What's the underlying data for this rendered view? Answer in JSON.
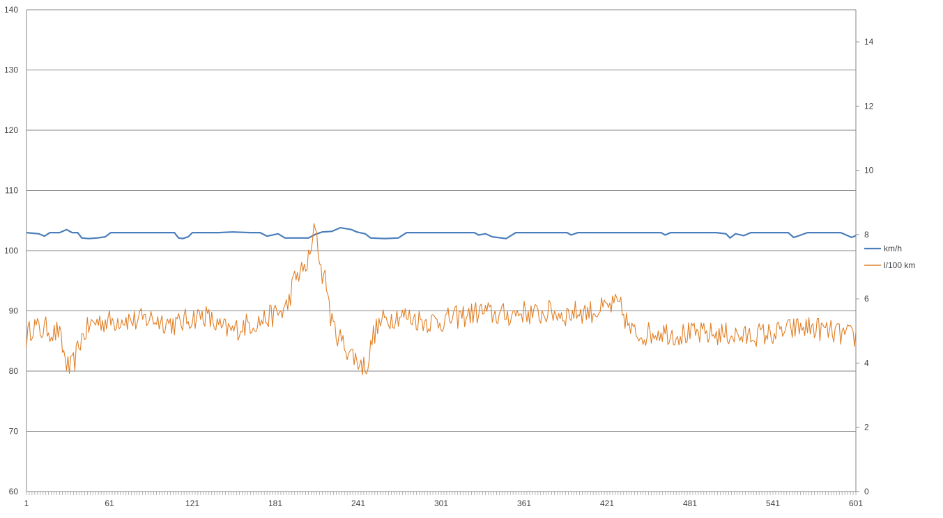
{
  "chart_data": {
    "type": "line",
    "title": "",
    "x": {
      "start": 1,
      "end": 601,
      "tick_labels": [
        "1",
        "61",
        "121",
        "181",
        "241",
        "301",
        "361",
        "421",
        "481",
        "541",
        "601"
      ]
    },
    "y_left": {
      "ylim": [
        60,
        140
      ],
      "tick_labels": [
        "60",
        "70",
        "80",
        "90",
        "100",
        "110",
        "120",
        "130",
        "140"
      ]
    },
    "y_right": {
      "ylim": [
        0,
        15
      ],
      "tick_labels": [
        "0",
        "2",
        "4",
        "6",
        "8",
        "10",
        "12",
        "14"
      ]
    },
    "grid": true,
    "legend_position": "right",
    "series": [
      {
        "name": "km/h",
        "axis": "left",
        "color": "#4a7ebb",
        "points": [
          [
            1,
            103
          ],
          [
            10,
            102.8
          ],
          [
            14,
            102.4
          ],
          [
            18,
            103
          ],
          [
            25,
            103
          ],
          [
            30,
            103.5
          ],
          [
            34,
            103
          ],
          [
            38,
            103
          ],
          [
            41,
            102.1
          ],
          [
            46,
            102
          ],
          [
            52,
            102.1
          ],
          [
            58,
            102.3
          ],
          [
            62,
            103
          ],
          [
            80,
            103
          ],
          [
            100,
            103
          ],
          [
            108,
            103
          ],
          [
            111,
            102.1
          ],
          [
            114,
            102
          ],
          [
            118,
            102.3
          ],
          [
            121,
            103
          ],
          [
            140,
            103
          ],
          [
            150,
            103.1
          ],
          [
            163,
            103
          ],
          [
            170,
            103
          ],
          [
            175,
            102.4
          ],
          [
            183,
            102.8
          ],
          [
            188,
            102.1
          ],
          [
            205,
            102.1
          ],
          [
            210,
            102.7
          ],
          [
            215,
            103.1
          ],
          [
            222,
            103.2
          ],
          [
            228,
            103.8
          ],
          [
            236,
            103.5
          ],
          [
            240,
            103.1
          ],
          [
            246,
            102.8
          ],
          [
            250,
            102.1
          ],
          [
            260,
            102
          ],
          [
            270,
            102.1
          ],
          [
            276,
            103
          ],
          [
            300,
            103
          ],
          [
            325,
            103
          ],
          [
            328,
            102.6
          ],
          [
            333,
            102.8
          ],
          [
            338,
            102.3
          ],
          [
            348,
            102
          ],
          [
            355,
            103
          ],
          [
            380,
            103
          ],
          [
            392,
            103
          ],
          [
            395,
            102.6
          ],
          [
            400,
            103
          ],
          [
            430,
            103
          ],
          [
            460,
            103
          ],
          [
            463,
            102.6
          ],
          [
            467,
            103
          ],
          [
            500,
            103
          ],
          [
            507,
            102.8
          ],
          [
            510,
            102.1
          ],
          [
            514,
            102.8
          ],
          [
            520,
            102.5
          ],
          [
            525,
            103
          ],
          [
            540,
            103
          ],
          [
            552,
            103
          ],
          [
            556,
            102.2
          ],
          [
            560,
            102.5
          ],
          [
            566,
            103
          ],
          [
            590,
            103
          ],
          [
            598,
            102.2
          ],
          [
            601,
            102.5
          ]
        ]
      },
      {
        "name": "l/100 km",
        "axis": "right",
        "color": "#e07f26",
        "points": [
          [
            1,
            4.8
          ],
          [
            6,
            5.2
          ],
          [
            11,
            5
          ],
          [
            16,
            5.1
          ],
          [
            21,
            4.9
          ],
          [
            24,
            5
          ],
          [
            28,
            4.3
          ],
          [
            30,
            4
          ],
          [
            32,
            3.8
          ],
          [
            34,
            3.9
          ],
          [
            36,
            4.1
          ],
          [
            40,
            4.7
          ],
          [
            44,
            5
          ],
          [
            48,
            5.2
          ],
          [
            52,
            5.3
          ],
          [
            58,
            5.3
          ],
          [
            64,
            5.3
          ],
          [
            70,
            5.4
          ],
          [
            80,
            5.3
          ],
          [
            90,
            5.4
          ],
          [
            100,
            5.3
          ],
          [
            110,
            5.2
          ],
          [
            120,
            5.4
          ],
          [
            130,
            5.5
          ],
          [
            140,
            5.1
          ],
          [
            150,
            5
          ],
          [
            160,
            5.2
          ],
          [
            170,
            5.3
          ],
          [
            180,
            5.5
          ],
          [
            186,
            5.6
          ],
          [
            190,
            5.8
          ],
          [
            194,
            6.5
          ],
          [
            198,
            6.8
          ],
          [
            202,
            6.9
          ],
          [
            206,
            7.3
          ],
          [
            208,
            7.7
          ],
          [
            210,
            8.4
          ],
          [
            212,
            7.6
          ],
          [
            214,
            6.9
          ],
          [
            218,
            6.5
          ],
          [
            220,
            5.8
          ],
          [
            222,
            5.2
          ],
          [
            226,
            4.9
          ],
          [
            230,
            4.6
          ],
          [
            234,
            4.4
          ],
          [
            238,
            4.2
          ],
          [
            242,
            4
          ],
          [
            245,
            3.9
          ],
          [
            248,
            4
          ],
          [
            252,
            4.9
          ],
          [
            258,
            5.3
          ],
          [
            264,
            5.4
          ],
          [
            270,
            5.5
          ],
          [
            280,
            5.4
          ],
          [
            290,
            5.3
          ],
          [
            300,
            5.3
          ],
          [
            310,
            5.4
          ],
          [
            320,
            5.5
          ],
          [
            330,
            5.6
          ],
          [
            340,
            5.5
          ],
          [
            350,
            5.5
          ],
          [
            360,
            5.6
          ],
          [
            370,
            5.5
          ],
          [
            380,
            5.6
          ],
          [
            390,
            5.5
          ],
          [
            400,
            5.6
          ],
          [
            410,
            5.6
          ],
          [
            420,
            5.7
          ],
          [
            426,
            5.8
          ],
          [
            430,
            5.8
          ],
          [
            434,
            5.4
          ],
          [
            438,
            5
          ],
          [
            442,
            4.9
          ],
          [
            450,
            4.9
          ],
          [
            460,
            5
          ],
          [
            470,
            4.9
          ],
          [
            480,
            4.9
          ],
          [
            490,
            4.9
          ],
          [
            500,
            4.9
          ],
          [
            510,
            4.9
          ],
          [
            520,
            4.8
          ],
          [
            530,
            4.9
          ],
          [
            540,
            4.9
          ],
          [
            550,
            5
          ],
          [
            560,
            5.1
          ],
          [
            570,
            5.1
          ],
          [
            580,
            5
          ],
          [
            590,
            4.9
          ],
          [
            601,
            4.8
          ]
        ]
      }
    ]
  }
}
